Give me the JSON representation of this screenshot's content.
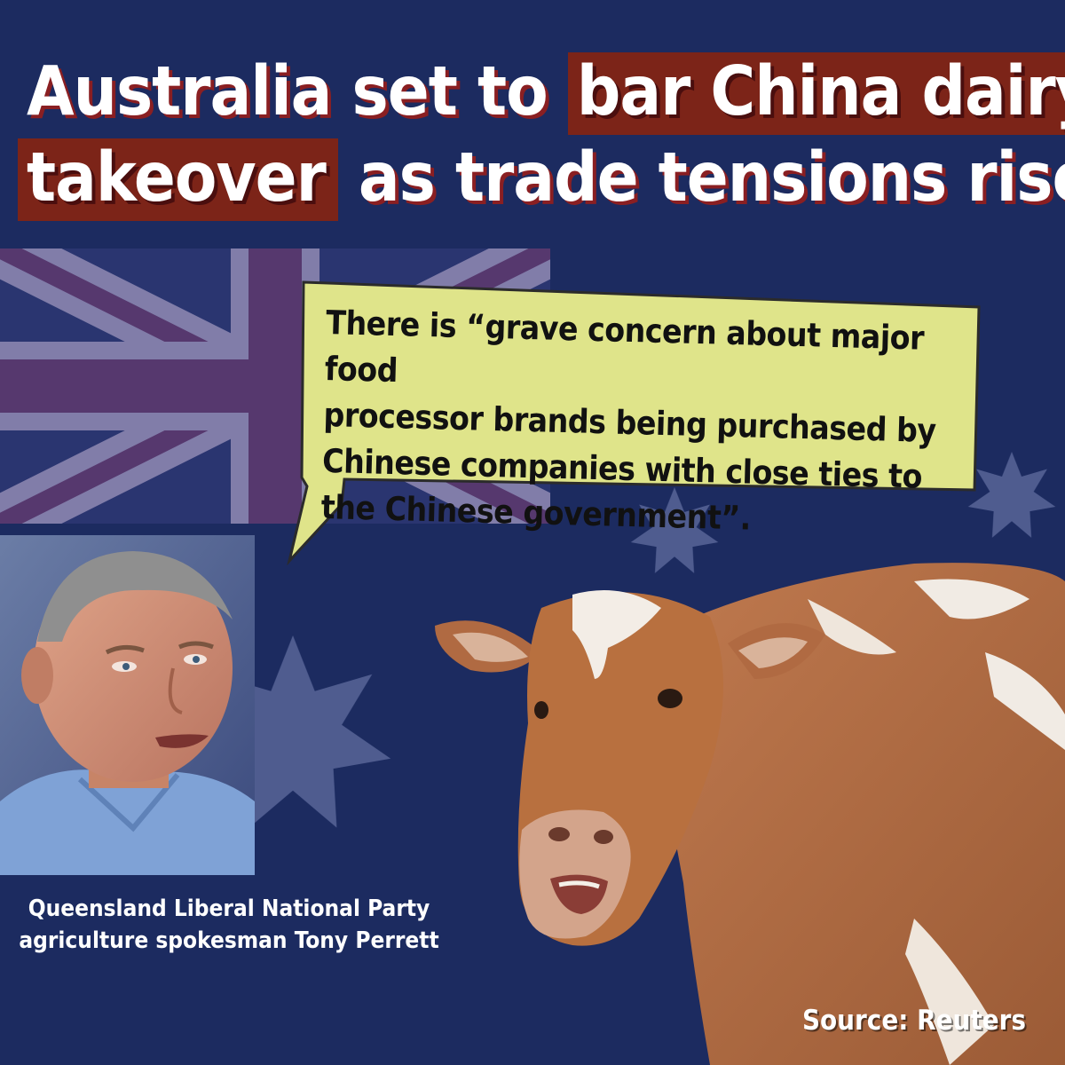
{
  "headline": {
    "line1_plain": "Australia set to ",
    "line1_highlight": "bar China dairy",
    "line2_highlight": "takeover",
    "line2_plain": " as trade tensions rise"
  },
  "quote": {
    "line1": "There is “grave concern about major food",
    "line2": "processor brands being purchased by",
    "line3": "Chinese companies with close ties to",
    "line4": "the Chinese government”."
  },
  "caption": {
    "line1": "Queensland Liberal National Party",
    "line2": "agriculture spokesman Tony Perrett"
  },
  "source": "Source: Reuters",
  "colors": {
    "background": "#1c2b60",
    "highlight": "#7c2418",
    "bubble": "#dfe48a",
    "text": "#ffffff"
  },
  "icons": [
    "australian-flag",
    "commonwealth-star",
    "speech-bubble"
  ]
}
